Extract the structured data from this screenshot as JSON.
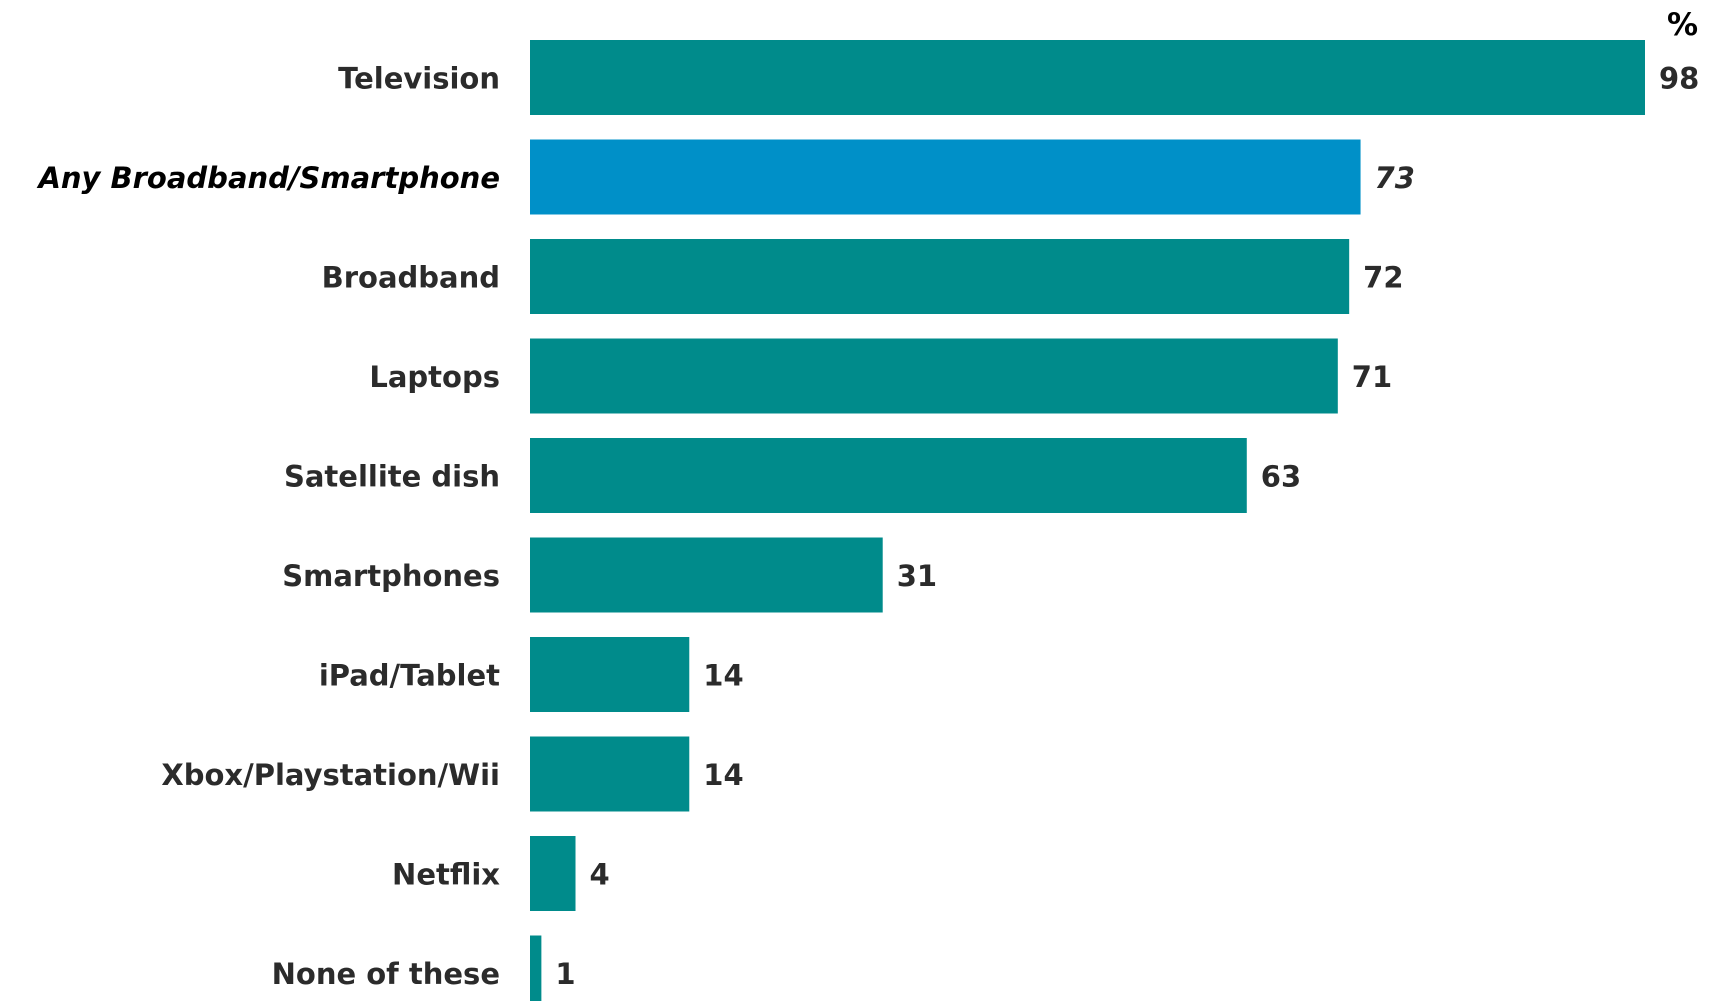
{
  "chart_data": {
    "type": "bar",
    "orientation": "horizontal",
    "unit": "%",
    "xlim": [
      0,
      98
    ],
    "grid": false,
    "categories": [
      "Television",
      "Any Broadband/Smartphone",
      "Broadband",
      "Laptops",
      "Satellite dish",
      "Smartphones",
      "iPad/Tablet",
      "Xbox/Playstation/Wii",
      "Netflix",
      "None of these"
    ],
    "values": [
      98,
      73,
      72,
      71,
      63,
      31,
      14,
      14,
      4,
      1
    ],
    "value_labels": [
      "98",
      "73",
      "72",
      "71",
      "63",
      "31",
      "14",
      "14",
      "4",
      "1"
    ],
    "highlight_index": 1,
    "colors": {
      "bar": "#008B8B",
      "highlight": "#0090C8",
      "text": "#2b2b2b"
    }
  }
}
